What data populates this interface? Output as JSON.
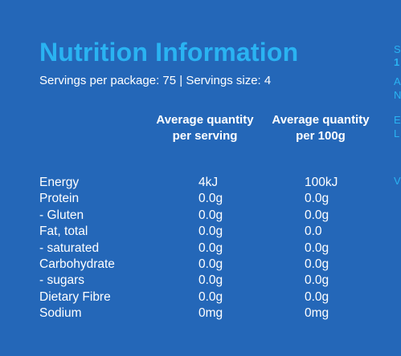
{
  "title": "Nutrition Information",
  "servings_line": "Servings per package: 75  |  Servings size: 4",
  "columns": [
    "Average quantity per serving",
    "Average quantity per 100g"
  ],
  "rows": [
    {
      "name": "Energy",
      "per_serving": "4kJ",
      "per_100g": "100kJ"
    },
    {
      "name": "Protein",
      "per_serving": "0.0g",
      "per_100g": "0.0g"
    },
    {
      "name": "- Gluten",
      "per_serving": "0.0g",
      "per_100g": "0.0g"
    },
    {
      "name": "Fat, total",
      "per_serving": "0.0g",
      "per_100g": "0.0"
    },
    {
      "name": "- saturated",
      "per_serving": "0.0g",
      "per_100g": "0.0g"
    },
    {
      "name": "Carbohydrate",
      "per_serving": "0.0g",
      "per_100g": "0.0g"
    },
    {
      "name": "- sugars",
      "per_serving": "0.0g",
      "per_100g": "0.0g"
    },
    {
      "name": "Dietary Fibre",
      "per_serving": "0.0g",
      "per_100g": "0.0g"
    },
    {
      "name": "Sodium",
      "per_serving": "0mg",
      "per_100g": "0mg"
    }
  ],
  "side_fragments": [
    "S",
    "1",
    "A",
    "N",
    "E",
    "L",
    "V"
  ],
  "colors": {
    "background": "#2467b8",
    "title": "#2ab3f2",
    "text": "#ffffff"
  }
}
